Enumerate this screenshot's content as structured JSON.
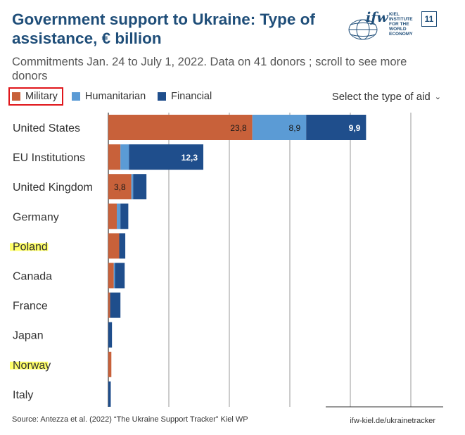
{
  "header": {
    "title": "Government support to Ukraine: Type of assistance, € billion",
    "subtitle": "Commitments Jan. 24 to July 1, 2022. Data on 41 donors ; scroll to see more donors",
    "logo_text": "ifw",
    "logo_sub": "KIEL INSTITUTE FOR THE WORLD ECONOMY",
    "page_number": "11"
  },
  "legend": {
    "items": [
      {
        "label": "Military",
        "color": "#c8613a",
        "highlighted": true
      },
      {
        "label": "Humanitarian",
        "color": "#5b9bd5",
        "highlighted": false
      },
      {
        "label": "Financial",
        "color": "#1f4e8c",
        "highlighted": false
      }
    ]
  },
  "selector": {
    "label": "Select the type of aid",
    "icon": "chevron-down-icon"
  },
  "chart_data": {
    "type": "bar",
    "orientation": "horizontal",
    "stacked": true,
    "categories": [
      "United States",
      "EU Institutions",
      "United Kingdom",
      "Germany",
      "Poland",
      "Canada",
      "France",
      "Japan",
      "Norway",
      "Italy"
    ],
    "highlighted_categories": [
      "Poland",
      "Norway"
    ],
    "series": [
      {
        "name": "Military",
        "color": "#c8613a",
        "values": [
          23.8,
          2.0,
          3.8,
          1.4,
          1.8,
          0.9,
          0.3,
          0.0,
          0.5,
          0.0
        ],
        "labels": [
          "23,8",
          "",
          "3,8",
          "",
          "",
          "",
          "",
          "",
          "",
          ""
        ]
      },
      {
        "name": "Humanitarian",
        "color": "#5b9bd5",
        "values": [
          8.9,
          1.4,
          0.3,
          0.6,
          0.0,
          0.2,
          0.0,
          0.0,
          0.0,
          0.0
        ],
        "labels": [
          "8,9",
          "",
          "",
          "",
          "",
          "",
          "",
          "",
          "",
          ""
        ]
      },
      {
        "name": "Financial",
        "color": "#1f4e8c",
        "values": [
          9.9,
          12.3,
          2.2,
          1.3,
          1.0,
          1.6,
          1.7,
          0.6,
          0.0,
          0.4
        ],
        "labels": [
          "9,9",
          "12,3",
          "",
          "",
          "",
          "",
          "",
          "",
          "",
          ""
        ]
      }
    ],
    "xlim": [
      0,
      50
    ],
    "grid_lines_at": [
      0,
      10,
      20,
      30,
      40,
      50
    ],
    "grid": true
  },
  "footer": {
    "source": "Source: Antezza et al. (2022) “The Ukraine Support Tracker” Kiel WP",
    "url": "ifw-kiel.de/ukrainetracker"
  }
}
